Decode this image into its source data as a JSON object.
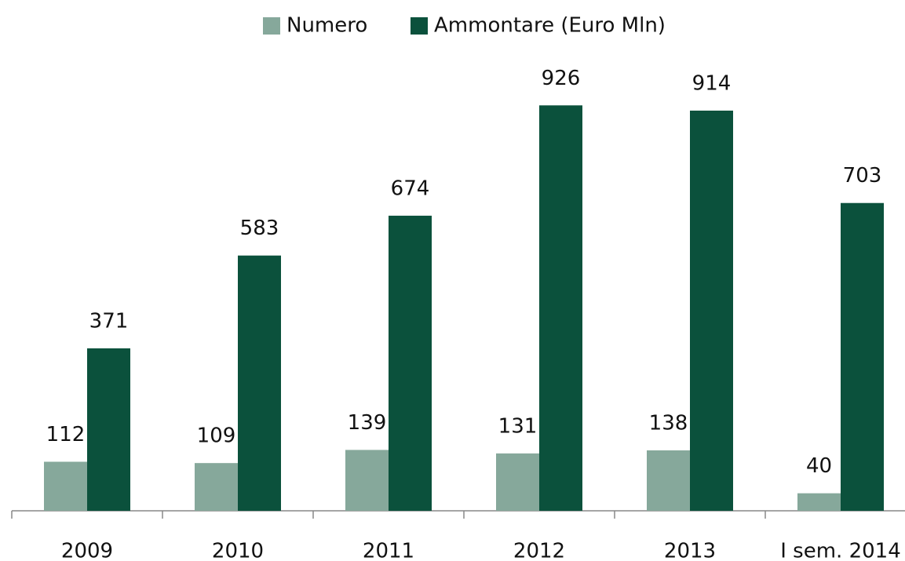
{
  "chart_data": {
    "type": "bar",
    "categories": [
      "2009",
      "2010",
      "2011",
      "2012",
      "2013",
      "I sem. 2014"
    ],
    "series": [
      {
        "name": "Numero",
        "color": "#86a89b",
        "values": [
          112,
          109,
          139,
          131,
          138,
          40
        ]
      },
      {
        "name": "Ammontare (Euro Mln)",
        "color": "#0b513c",
        "values": [
          371,
          583,
          674,
          926,
          914,
          703
        ]
      }
    ],
    "ylim": [
      0,
      1000
    ],
    "legend": "top"
  }
}
